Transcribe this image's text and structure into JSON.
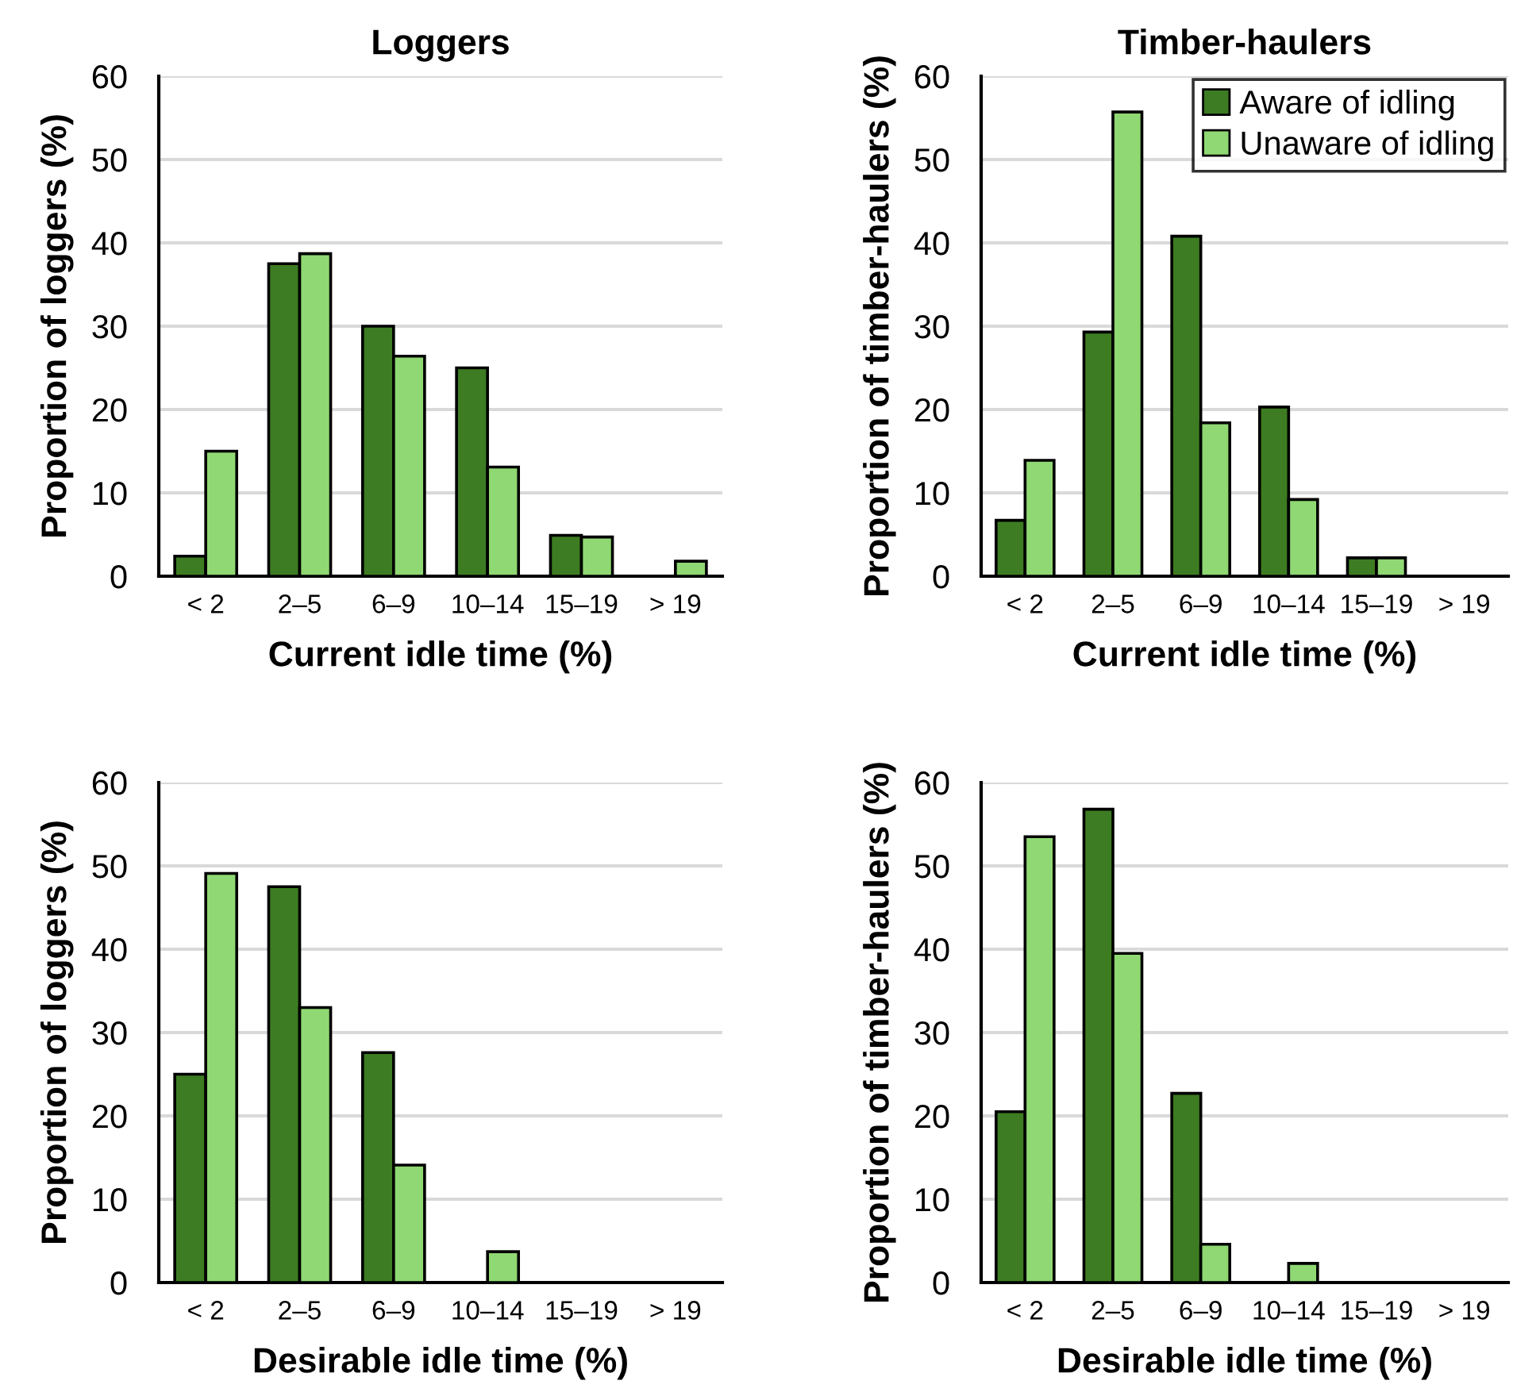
{
  "chart_data": [
    {
      "type": "bar",
      "title": "Loggers",
      "xlabel": "Current idle time (%)",
      "ylabel": "Proportion of loggers (%)",
      "categories": [
        "< 2",
        "2–5",
        "6–9",
        "10–14",
        "15–19",
        "> 19"
      ],
      "series": [
        {
          "color": "#3d7c22",
          "values": [
            2.4,
            37.5,
            30,
            25,
            4.9,
            0
          ]
        },
        {
          "color": "#8fd873",
          "values": [
            15.0,
            38.7,
            26.4,
            13.1,
            4.7,
            1.8
          ]
        }
      ],
      "ylim": [
        0,
        60
      ],
      "yticks": [
        0,
        10,
        20,
        30,
        40,
        50,
        60
      ],
      "grid": "y"
    },
    {
      "type": "bar",
      "title": "Timber-haulers",
      "xlabel": "Current idle time (%)",
      "ylabel": "Proportion of timber-haulers (%)",
      "categories": [
        "< 2",
        "2–5",
        "6–9",
        "10–14",
        "15–19",
        "> 19"
      ],
      "series": [
        {
          "name": "Aware of idling",
          "color": "#3d7c22",
          "values": [
            6.7,
            29.3,
            40.8,
            20.3,
            2.2,
            0
          ]
        },
        {
          "name": "Unaware of idling",
          "color": "#8fd873",
          "values": [
            13.9,
            55.7,
            18.4,
            9.2,
            2.2,
            0
          ]
        }
      ],
      "ylim": [
        0,
        60
      ],
      "yticks": [
        0,
        10,
        20,
        30,
        40,
        50,
        60
      ],
      "grid": "y",
      "legend": "top right"
    },
    {
      "type": "bar",
      "xlabel": "Desirable idle time (%)",
      "ylabel": "Proportion of loggers (%)",
      "categories": [
        "< 2",
        "2–5",
        "6–9",
        "10–14",
        "15–19",
        "> 19"
      ],
      "series": [
        {
          "color": "#3d7c22",
          "values": [
            25.0,
            47.5,
            27.6,
            0,
            0,
            0
          ]
        },
        {
          "color": "#8fd873",
          "values": [
            49.1,
            33.0,
            14.1,
            3.7,
            0,
            0
          ]
        }
      ],
      "ylim": [
        0,
        60
      ],
      "yticks": [
        0,
        10,
        20,
        30,
        40,
        50,
        60
      ],
      "grid": "y"
    },
    {
      "type": "bar",
      "xlabel": "Desirable idle time (%)",
      "ylabel": "Proportion of timber-haulers (%)",
      "categories": [
        "< 2",
        "2–5",
        "6–9",
        "10–14",
        "15–19",
        "> 19"
      ],
      "series": [
        {
          "color": "#3d7c22",
          "values": [
            20.5,
            56.8,
            22.7,
            0,
            0,
            0
          ]
        },
        {
          "color": "#8fd873",
          "values": [
            53.5,
            39.5,
            4.6,
            2.3,
            0,
            0
          ]
        }
      ],
      "ylim": [
        0,
        60
      ],
      "yticks": [
        0,
        10,
        20,
        30,
        40,
        50,
        60
      ],
      "grid": "y"
    }
  ]
}
